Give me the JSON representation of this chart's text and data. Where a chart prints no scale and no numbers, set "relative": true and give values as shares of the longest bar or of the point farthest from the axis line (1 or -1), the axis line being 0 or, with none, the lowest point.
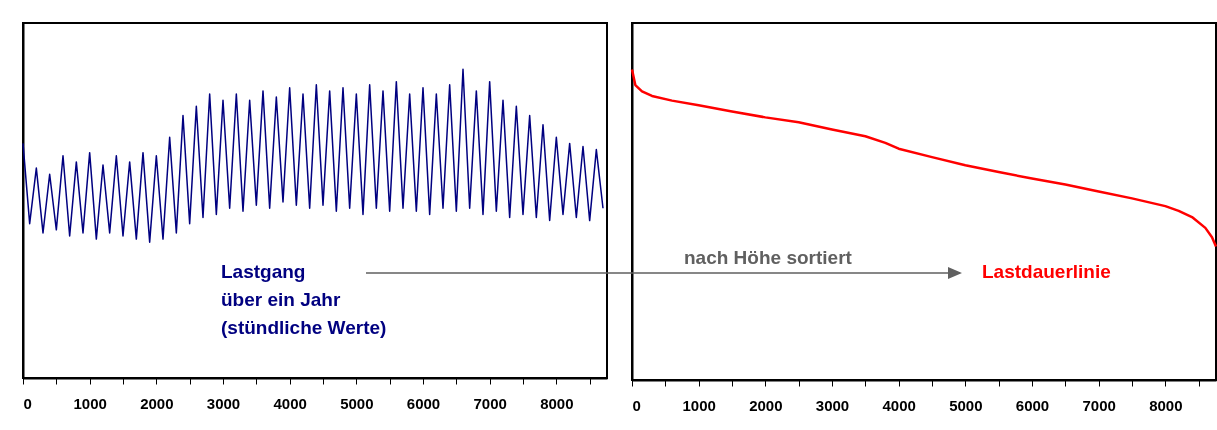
{
  "chart_data": [
    {
      "type": "line",
      "relative": true,
      "annotations": [
        "Lastgang\nüber ein Jahr\n(stündliche Werte)"
      ],
      "xlim": [
        0,
        8760
      ],
      "xticks": [
        0,
        {
          "value": 500,
          "label": null
        },
        1000,
        {
          "value": 1500,
          "label": null
        },
        2000,
        {
          "value": 2500,
          "label": null
        },
        3000,
        {
          "value": 3500,
          "label": null
        },
        4000,
        {
          "value": 4500,
          "label": null
        },
        5000,
        {
          "value": 5500,
          "label": null
        },
        6000,
        {
          "value": 6500,
          "label": null
        },
        7000,
        {
          "value": 7500,
          "label": null
        },
        8000,
        {
          "value": 8500,
          "label": null
        }
      ],
      "grid": false,
      "series": [
        {
          "color": "#000080",
          "x": [
            0,
            100,
            200,
            300,
            400,
            500,
            600,
            700,
            800,
            900,
            1000,
            1100,
            1200,
            1300,
            1400,
            1500,
            1600,
            1700,
            1800,
            1900,
            2000,
            2100,
            2200,
            2300,
            2400,
            2500,
            2600,
            2700,
            2800,
            2900,
            3000,
            3100,
            3200,
            3300,
            3400,
            3500,
            3600,
            3700,
            3800,
            3900,
            4000,
            4100,
            4200,
            4300,
            4400,
            4500,
            4600,
            4700,
            4800,
            4900,
            5000,
            5100,
            5200,
            5300,
            5400,
            5500,
            5600,
            5700,
            5800,
            5900,
            6000,
            6100,
            6200,
            6300,
            6400,
            6500,
            6600,
            6700,
            6800,
            6900,
            7000,
            7100,
            7200,
            7300,
            7400,
            7500,
            7600,
            7700,
            7800,
            7900,
            8000,
            8100,
            8200,
            8300,
            8400,
            8500,
            8600,
            8700
          ],
          "values": [
            0.76,
            0.5,
            0.68,
            0.47,
            0.66,
            0.48,
            0.72,
            0.46,
            0.7,
            0.47,
            0.73,
            0.45,
            0.69,
            0.47,
            0.72,
            0.46,
            0.7,
            0.45,
            0.73,
            0.44,
            0.72,
            0.45,
            0.78,
            0.47,
            0.85,
            0.5,
            0.88,
            0.52,
            0.92,
            0.53,
            0.9,
            0.55,
            0.92,
            0.54,
            0.9,
            0.56,
            0.93,
            0.55,
            0.91,
            0.57,
            0.94,
            0.56,
            0.92,
            0.55,
            0.95,
            0.56,
            0.93,
            0.54,
            0.94,
            0.55,
            0.92,
            0.53,
            0.95,
            0.55,
            0.93,
            0.54,
            0.96,
            0.55,
            0.92,
            0.54,
            0.94,
            0.53,
            0.92,
            0.55,
            0.95,
            0.54,
            1.0,
            0.55,
            0.93,
            0.53,
            0.96,
            0.54,
            0.9,
            0.52,
            0.88,
            0.53,
            0.85,
            0.52,
            0.82,
            0.51,
            0.78,
            0.53,
            0.76,
            0.52,
            0.75,
            0.51,
            0.74,
            0.55
          ]
        }
      ]
    },
    {
      "type": "line",
      "relative": true,
      "annotations": [
        "nach Höhe sortiert",
        "Lastdauerlinie"
      ],
      "xlim": [
        0,
        8760
      ],
      "xticks": [
        0,
        {
          "value": 500,
          "label": null
        },
        1000,
        {
          "value": 1500,
          "label": null
        },
        2000,
        {
          "value": 2500,
          "label": null
        },
        3000,
        {
          "value": 3500,
          "label": null
        },
        4000,
        {
          "value": 4500,
          "label": null
        },
        5000,
        {
          "value": 5500,
          "label": null
        },
        6000,
        {
          "value": 6500,
          "label": null
        },
        7000,
        {
          "value": 7500,
          "label": null
        },
        8000,
        {
          "value": 8500,
          "label": null
        }
      ],
      "grid": false,
      "series": [
        {
          "color": "#ff0000",
          "x": [
            0,
            50,
            150,
            300,
            600,
            1000,
            1500,
            2000,
            2500,
            3000,
            3500,
            3800,
            4000,
            4500,
            5000,
            5500,
            6000,
            6500,
            7000,
            7500,
            8000,
            8200,
            8400,
            8600,
            8700,
            8760
          ],
          "values": [
            1.0,
            0.95,
            0.93,
            0.915,
            0.9,
            0.885,
            0.865,
            0.846,
            0.83,
            0.807,
            0.785,
            0.764,
            0.745,
            0.718,
            0.692,
            0.67,
            0.649,
            0.63,
            0.607,
            0.585,
            0.56,
            0.545,
            0.525,
            0.49,
            0.46,
            0.43
          ]
        }
      ]
    }
  ]
}
